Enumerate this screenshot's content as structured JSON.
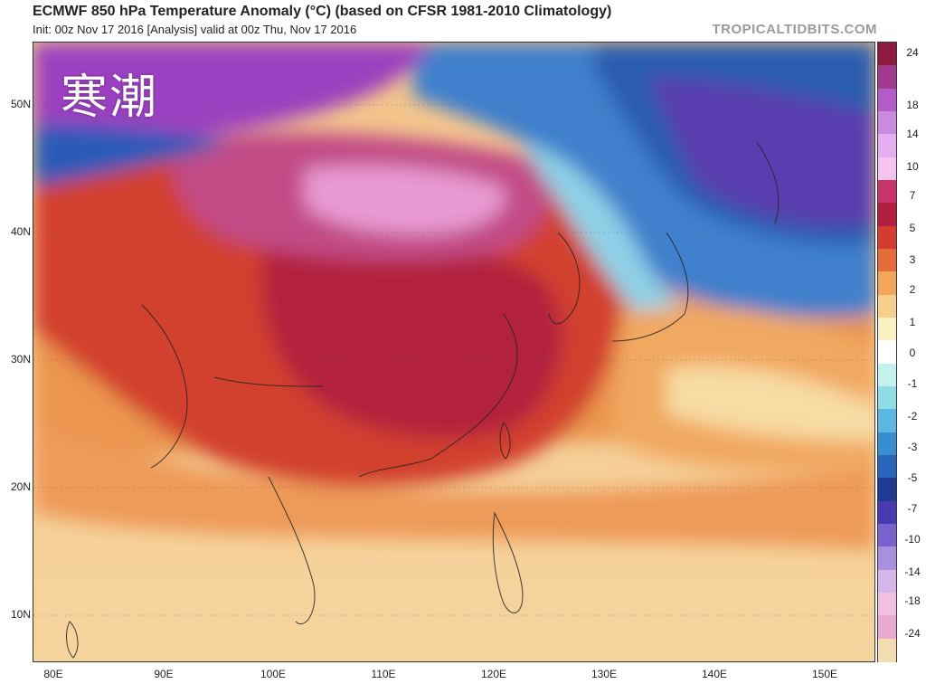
{
  "header": {
    "title": "ECMWF 850 hPa Temperature Anomaly (°C) (based on CFSR 1981-2010 Climatology)",
    "subtitle": "Init: 00z Nov 17 2016   [Analysis]   valid at 00z Thu, Nov 17 2016",
    "brand": "TROPICALTIDBITS.COM"
  },
  "map": {
    "overlay_text": "寒潮",
    "latitude_labels": [
      "50N",
      "40N",
      "30N",
      "20N",
      "10N"
    ],
    "longitude_labels": [
      "80E",
      "90E",
      "100E",
      "110E",
      "120E",
      "130E",
      "140E",
      "150E"
    ]
  },
  "colorbar": {
    "labels": [
      "24",
      "18",
      "14",
      "10",
      "7",
      "5",
      "3",
      "2",
      "1",
      "0",
      "-1",
      "-2",
      "-3",
      "-5",
      "-7",
      "-10",
      "-14",
      "-18",
      "-24"
    ],
    "colors": [
      "#8e1a40",
      "#a03a8c",
      "#b35cc8",
      "#c98ae0",
      "#e4aef0",
      "#f4c4ee",
      "#c9346a",
      "#b21f3f",
      "#d43c2e",
      "#e56d3c",
      "#f1a65a",
      "#f6d08a",
      "#fbf0c4",
      "#ffffff",
      "#c4f0ee",
      "#8fdbe6",
      "#5cb8e0",
      "#3a8ed0",
      "#2a64b8",
      "#203a92",
      "#4a3ab0",
      "#7a62cc",
      "#a890dc",
      "#d6b6e8",
      "#f0c0e0",
      "#e8a8d0",
      "#f2dcb0"
    ]
  }
}
